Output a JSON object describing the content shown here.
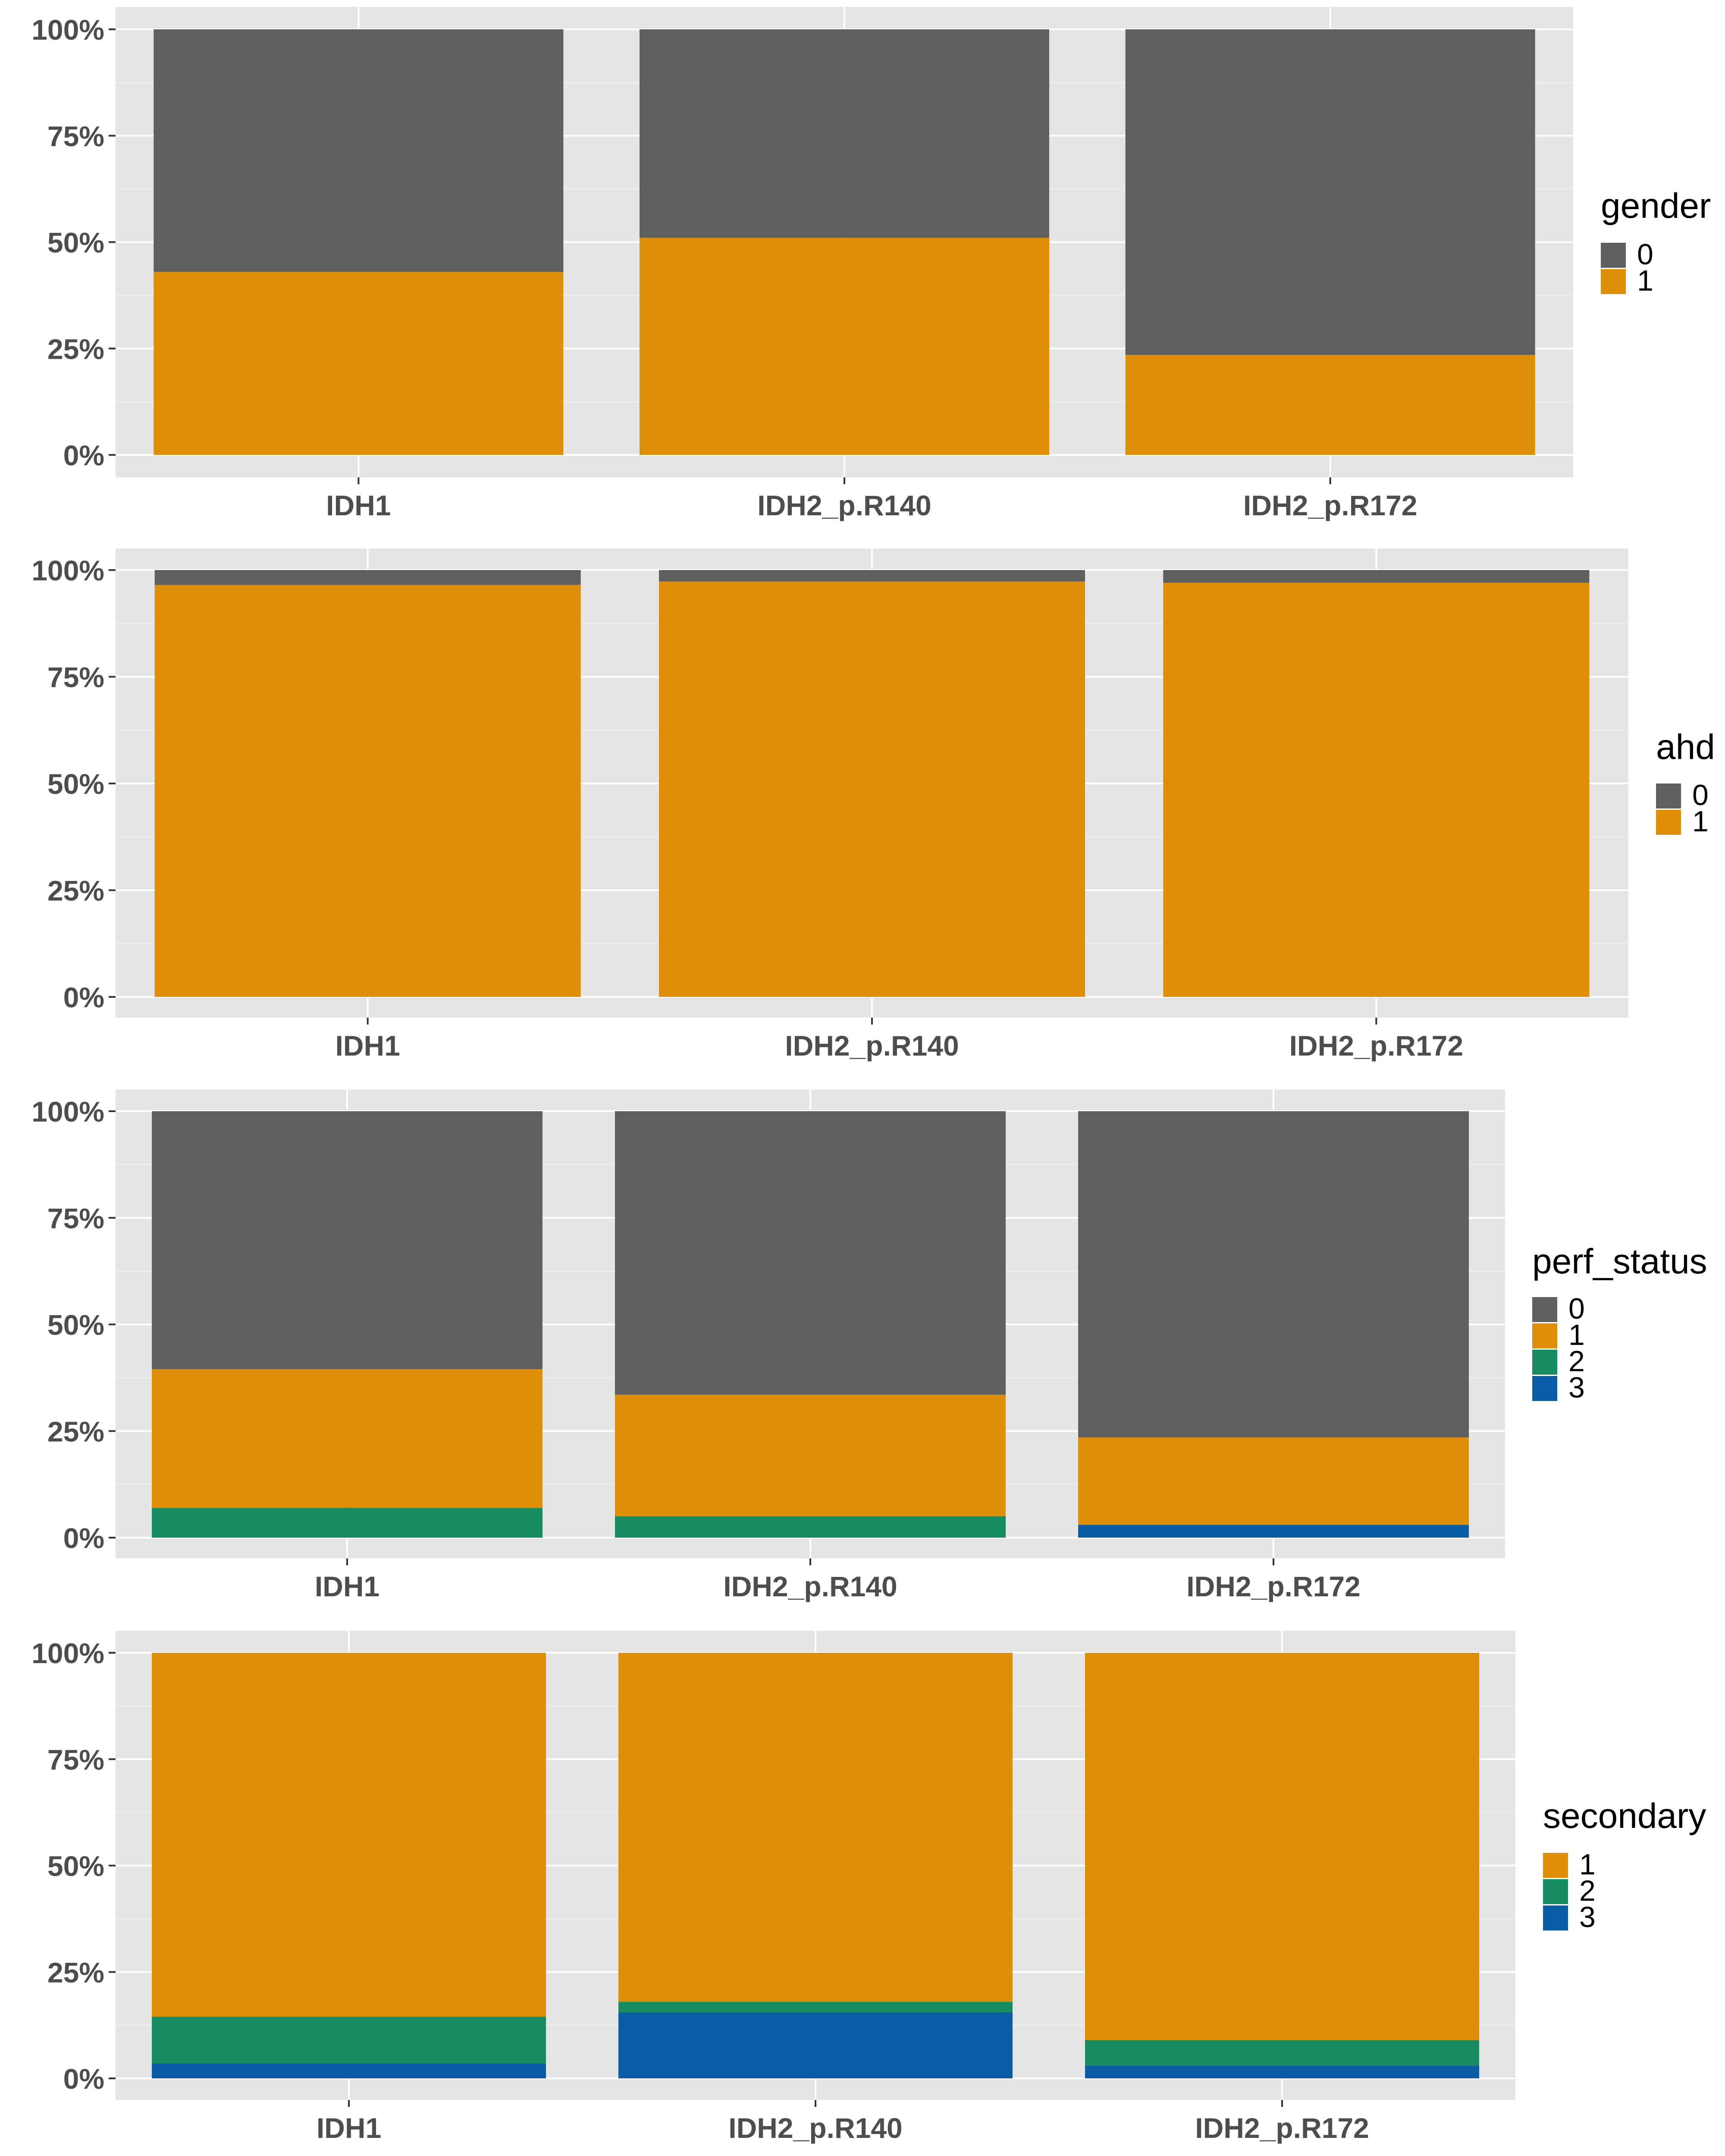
{
  "colors": {
    "0": "#5f5f5f",
    "1": "#df8e07",
    "2": "#178c60",
    "3": "#0a5ca4",
    "panel_bg": "#e5e5e5",
    "grid_major": "#ffffff",
    "grid_minor": "#f2f2f2"
  },
  "chart_data": [
    {
      "type": "bar",
      "stacked": "percent",
      "categories": [
        "IDH1",
        "IDH2_p.R140",
        "IDH2_p.R172"
      ],
      "ylim": [
        0,
        1
      ],
      "yticks": [
        "0%",
        "25%",
        "50%",
        "75%",
        "100%"
      ],
      "legend": {
        "title": "gender",
        "position": "right"
      },
      "series": [
        {
          "name": "0",
          "values": [
            0.57,
            0.49,
            0.765
          ]
        },
        {
          "name": "1",
          "values": [
            0.43,
            0.51,
            0.235
          ]
        }
      ]
    },
    {
      "type": "bar",
      "stacked": "percent",
      "categories": [
        "IDH1",
        "IDH2_p.R140",
        "IDH2_p.R172"
      ],
      "ylim": [
        0,
        1
      ],
      "yticks": [
        "0%",
        "25%",
        "50%",
        "75%",
        "100%"
      ],
      "legend": {
        "title": "ahd",
        "position": "right"
      },
      "series": [
        {
          "name": "0",
          "values": [
            0.035,
            0.027,
            0.03
          ]
        },
        {
          "name": "1",
          "values": [
            0.965,
            0.973,
            0.97
          ]
        }
      ]
    },
    {
      "type": "bar",
      "stacked": "percent",
      "categories": [
        "IDH1",
        "IDH2_p.R140",
        "IDH2_p.R172"
      ],
      "ylim": [
        0,
        1
      ],
      "yticks": [
        "0%",
        "25%",
        "50%",
        "75%",
        "100%"
      ],
      "legend": {
        "title": "perf_status",
        "position": "right"
      },
      "series": [
        {
          "name": "0",
          "values": [
            0.605,
            0.665,
            0.765
          ]
        },
        {
          "name": "1",
          "values": [
            0.325,
            0.285,
            0.205
          ]
        },
        {
          "name": "2",
          "values": [
            0.07,
            0.05,
            0.0
          ]
        },
        {
          "name": "3",
          "values": [
            0.0,
            0.0,
            0.03
          ]
        }
      ]
    },
    {
      "type": "bar",
      "stacked": "percent",
      "categories": [
        "IDH1",
        "IDH2_p.R140",
        "IDH2_p.R172"
      ],
      "ylim": [
        0,
        1
      ],
      "yticks": [
        "0%",
        "25%",
        "50%",
        "75%",
        "100%"
      ],
      "legend": {
        "title": "secondary",
        "position": "right"
      },
      "series": [
        {
          "name": "1",
          "values": [
            0.855,
            0.82,
            0.91
          ]
        },
        {
          "name": "2",
          "values": [
            0.11,
            0.025,
            0.06
          ]
        },
        {
          "name": "3",
          "values": [
            0.035,
            0.155,
            0.03
          ]
        }
      ]
    }
  ]
}
